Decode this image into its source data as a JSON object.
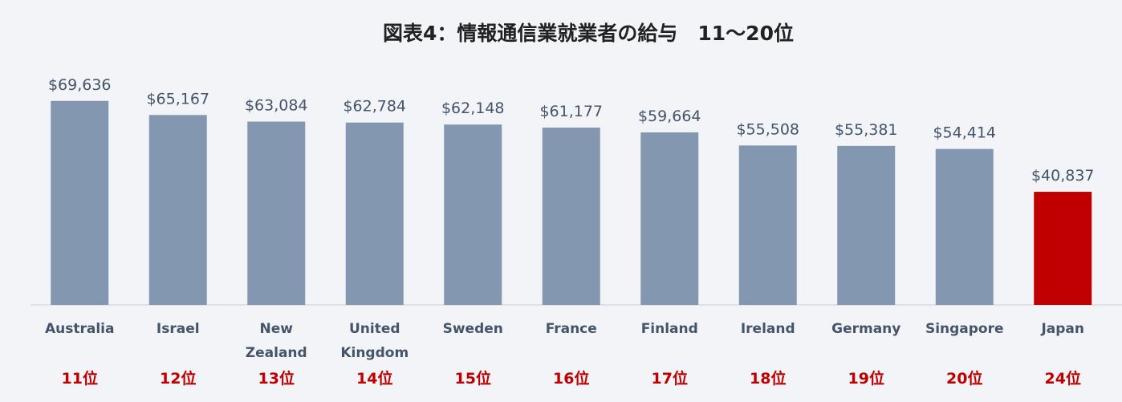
{
  "chart_data": {
    "type": "bar",
    "title": "図表4：情報通信業就業者の給与　11～20位",
    "categories": [
      "Australia",
      "Israel",
      "New Zealand",
      "United Kingdom",
      "Sweden",
      "France",
      "Finland",
      "Ireland",
      "Germany",
      "Singapore",
      "Japan"
    ],
    "values": [
      69636,
      65167,
      63084,
      62784,
      62148,
      61177,
      59664,
      55508,
      55381,
      54414,
      40837
    ],
    "value_labels": [
      "$69,636",
      "$65,167",
      "$63,084",
      "$62,784",
      "$62,148",
      "$61,177",
      "$59,664",
      "$55,508",
      "$55,381",
      "$54,414",
      "$40,837"
    ],
    "ranks": [
      "11位",
      "12位",
      "13位",
      "14位",
      "15位",
      "16位",
      "17位",
      "18位",
      "19位",
      "20位",
      "24位"
    ],
    "colors": [
      "#8497b0",
      "#8497b0",
      "#8497b0",
      "#8497b0",
      "#8497b0",
      "#8497b0",
      "#8497b0",
      "#8497b0",
      "#8497b0",
      "#8497b0",
      "#c00000"
    ],
    "ylim": [
      5000,
      80000
    ]
  }
}
